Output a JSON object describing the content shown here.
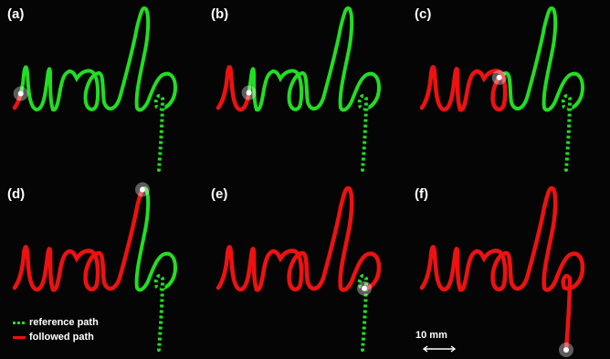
{
  "panels": [
    {
      "label": "(a)",
      "progress": 0.02
    },
    {
      "label": "(b)",
      "progress": 0.14
    },
    {
      "label": "(c)",
      "progress": 0.42
    },
    {
      "label": "(d)",
      "progress": 0.62
    },
    {
      "label": "(e)",
      "progress": 0.88
    },
    {
      "label": "(f)",
      "progress": 1.0
    }
  ],
  "legend": {
    "reference": "reference path",
    "followed": "followed path"
  },
  "scale_label": "10 mm",
  "colors": {
    "reference": "#22dd22",
    "followed": "#ee1111",
    "background": "#050505",
    "tip": "#ffffff"
  }
}
